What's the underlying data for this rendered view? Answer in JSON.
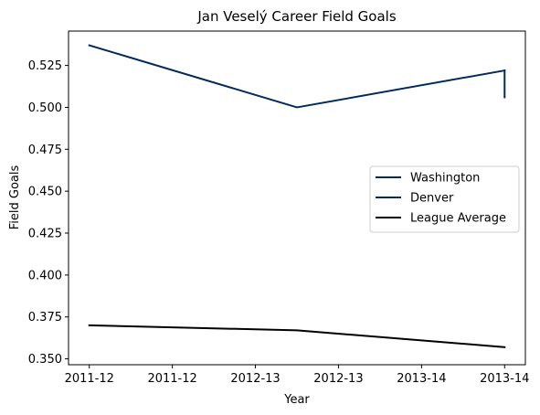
{
  "chart_data": {
    "type": "line",
    "title": "Jan Veselý Career Field Goals",
    "xlabel": "Year",
    "ylabel": "Field Goals",
    "x_tick_labels": [
      "2011-12",
      "2011-12",
      "2012-13",
      "2012-13",
      "2013-14",
      "2013-14"
    ],
    "x_tick_positions": [
      0,
      0.5,
      1,
      1.5,
      2,
      2.5
    ],
    "xlim": [
      -0.125,
      2.625
    ],
    "y_ticks": [
      0.35,
      0.375,
      0.4,
      0.425,
      0.45,
      0.475,
      0.5,
      0.525
    ],
    "y_tick_labels": [
      "0.350",
      "0.375",
      "0.400",
      "0.425",
      "0.450",
      "0.475",
      "0.500",
      "0.525"
    ],
    "ylim": [
      0.3465,
      0.5455
    ],
    "grid": false,
    "legend_position": "center-right",
    "series": [
      {
        "name": "Washington",
        "color": "#002b5c",
        "x": [
          0,
          1.25,
          2.5
        ],
        "y": [
          0.537,
          0.5,
          0.522
        ]
      },
      {
        "name": "Denver",
        "color": "#002b5c",
        "x": [
          2.5,
          2.5
        ],
        "y": [
          0.522,
          0.506
        ]
      },
      {
        "name": "League Average",
        "color": "#000000",
        "x": [
          0,
          1.25,
          2.5
        ],
        "y": [
          0.37,
          0.367,
          0.357
        ]
      }
    ]
  }
}
